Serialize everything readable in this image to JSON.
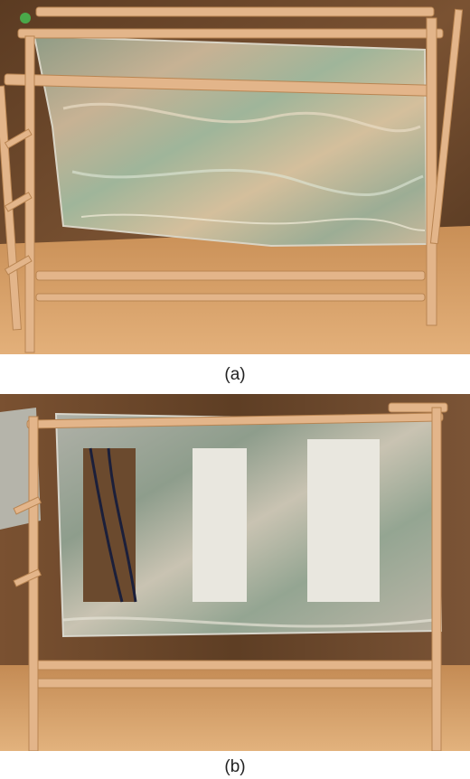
{
  "figure": {
    "panels": [
      {
        "caption": "(a)",
        "subject": "wooden-frame-with-solid-foil-sheet"
      },
      {
        "caption": "(b)",
        "subject": "wooden-frame-with-foil-sheet-and-three-slots"
      }
    ]
  },
  "colors": {
    "wood": "#e3b58a",
    "wood_shadow": "#b98552",
    "wall": "#6e4a2c",
    "table": "#d29a60",
    "foil": "#a8aaa0",
    "foil_tint": "#8fa590",
    "slot_white": "#e9e7df"
  }
}
